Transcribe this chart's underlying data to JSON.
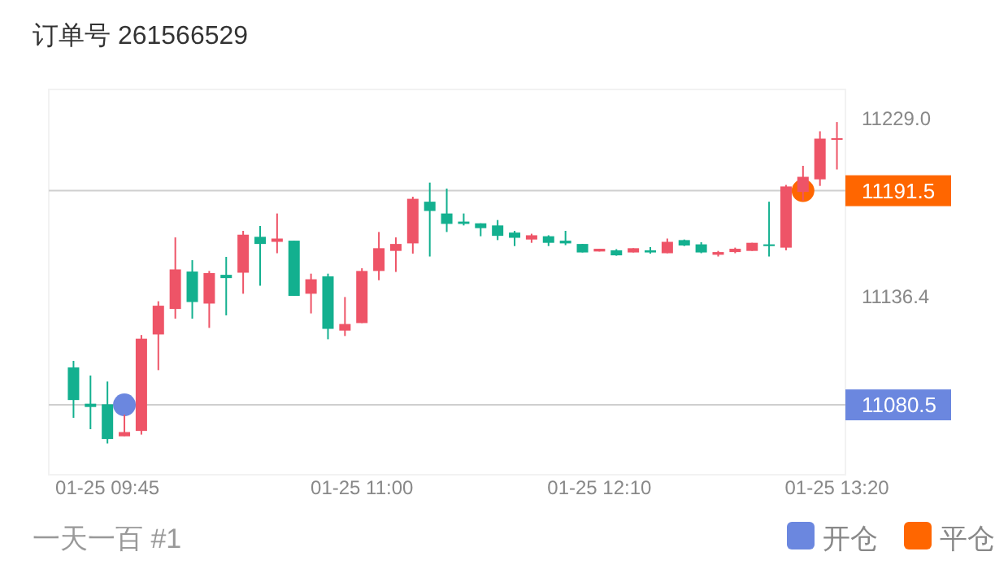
{
  "chart_data": {
    "type": "candlestick",
    "title": "订单号 261566529",
    "categories": [
      null,
      null,
      "01-25 09:45",
      null,
      null,
      null,
      null,
      null,
      null,
      null,
      null,
      null,
      null,
      null,
      null,
      null,
      null,
      "01-25 11:00",
      null,
      null,
      null,
      null,
      null,
      null,
      null,
      null,
      null,
      null,
      null,
      null,
      null,
      "01-25 12:10",
      null,
      null,
      null,
      null,
      null,
      null,
      null,
      null,
      null,
      null,
      null,
      null,
      null,
      "01-25 13:20"
    ],
    "ohlc": [
      [
        11099.9,
        11103.3,
        11073.8,
        11083.0
      ],
      [
        11081.1,
        11095.7,
        11067.9,
        11079.4
      ],
      [
        11080.8,
        11092.6,
        11060.5,
        11062.8
      ],
      [
        11064.2,
        11075.4,
        11064.2,
        11066.4
      ],
      [
        11067.0,
        11116.7,
        11065.1,
        11114.8
      ],
      [
        11117.0,
        11134.2,
        11098.5,
        11131.9
      ],
      [
        11130.2,
        11167.3,
        11125.2,
        11150.7
      ],
      [
        11149.6,
        11155.5,
        11125.2,
        11133.8
      ],
      [
        11133.0,
        11149.9,
        11120.4,
        11148.8
      ],
      [
        11147.9,
        11157.2,
        11126.9,
        11146.2
      ],
      [
        11149.0,
        11170.7,
        11138.1,
        11168.7
      ],
      [
        11167.6,
        11173.2,
        11142.3,
        11163.9
      ],
      [
        11165.0,
        11179.7,
        11159.1,
        11166.7
      ],
      [
        11165.6,
        11165.6,
        11137.0,
        11137.0
      ],
      [
        11138.1,
        11148.5,
        11127.9,
        11145.6
      ],
      [
        11147.1,
        11148.5,
        11114.5,
        11119.9
      ],
      [
        11119.0,
        11136.4,
        11116.2,
        11122.4
      ],
      [
        11122.9,
        11151.3,
        11122.9,
        11149.9
      ],
      [
        11149.9,
        11170.1,
        11145.1,
        11161.7
      ],
      [
        11160.3,
        11167.3,
        11149.4,
        11163.9
      ],
      [
        11164.2,
        11188.4,
        11158.9,
        11187.3
      ],
      [
        11185.8,
        11195.7,
        11157.4,
        11181.0
      ],
      [
        11179.7,
        11192.6,
        11170.1,
        11174.3
      ],
      [
        11175.5,
        11179.7,
        11173.5,
        11174.3
      ],
      [
        11174.6,
        11174.6,
        11167.9,
        11172.1
      ],
      [
        11173.5,
        11176.3,
        11165.9,
        11168.1
      ],
      [
        11169.8,
        11170.7,
        11162.8,
        11167.1
      ],
      [
        11166.2,
        11169.2,
        11164.5,
        11168.4
      ],
      [
        11167.9,
        11168.4,
        11162.8,
        11164.5
      ],
      [
        11165.6,
        11170.7,
        11163.3,
        11164.2
      ],
      [
        11163.9,
        11163.9,
        11159.5,
        11159.5
      ],
      [
        11160.0,
        11161.4,
        11160.0,
        11161.4
      ],
      [
        11160.6,
        11161.2,
        11157.8,
        11158.0
      ],
      [
        11159.5,
        11161.7,
        11159.5,
        11161.7
      ],
      [
        11160.6,
        11162.3,
        11158.9,
        11159.5
      ],
      [
        11159.1,
        11166.7,
        11159.1,
        11165.0
      ],
      [
        11165.9,
        11166.2,
        11162.8,
        11163.1
      ],
      [
        11163.7,
        11164.8,
        11159.1,
        11159.5
      ],
      [
        11158.3,
        11160.3,
        11157.4,
        11159.7
      ],
      [
        11159.7,
        11162.0,
        11159.1,
        11161.4
      ],
      [
        11160.3,
        11164.5,
        11160.3,
        11164.5
      ],
      [
        11163.7,
        11185.8,
        11157.4,
        11162.8
      ],
      [
        11162.0,
        11194.5,
        11160.6,
        11193.7
      ],
      [
        11190.9,
        11204.4,
        11186.4,
        11198.7
      ],
      [
        11197.4,
        11222.3,
        11194.0,
        11218.5
      ],
      [
        11217.9,
        11227.1,
        11202.5,
        11218.7
      ]
    ],
    "colors": [
      "#13b08f",
      "#13b08f",
      "#13b08f",
      "#ee5467",
      "#ee5467",
      "#ee5467",
      "#ee5467",
      "#13b08f",
      "#ee5467",
      "#13b08f",
      "#ee5467",
      "#13b08f",
      "#ee5467",
      "#13b08f",
      "#ee5467",
      "#13b08f",
      "#ee5467",
      "#ee5467",
      "#ee5467",
      "#ee5467",
      "#ee5467",
      "#13b08f",
      "#13b08f",
      "#13b08f",
      "#13b08f",
      "#13b08f",
      "#13b08f",
      "#ee5467",
      "#13b08f",
      "#13b08f",
      "#13b08f",
      "#ee5467",
      "#13b08f",
      "#ee5467",
      "#13b08f",
      "#ee5467",
      "#13b08f",
      "#13b08f",
      "#ee5467",
      "#ee5467",
      "#ee5467",
      "#13b08f",
      "#ee5467",
      "#ee5467",
      "#ee5467",
      "#ee5467"
    ],
    "series": [
      {
        "type": "scatter",
        "name": "开仓",
        "color": "#6b87df",
        "values": [
          null,
          null,
          null,
          11080.5,
          null,
          null,
          null,
          null,
          null,
          null,
          null,
          null,
          null,
          null,
          null,
          null,
          null,
          null,
          null,
          null,
          null,
          null,
          null,
          null,
          null,
          null,
          null,
          null,
          null,
          null,
          null,
          null,
          null,
          null,
          null,
          null,
          null,
          null,
          null,
          null,
          null,
          null,
          null,
          null,
          null,
          null
        ]
      },
      {
        "type": "scatter",
        "name": "平仓",
        "color": "#ff6600",
        "values": [
          null,
          null,
          null,
          null,
          null,
          null,
          null,
          null,
          null,
          null,
          null,
          null,
          null,
          null,
          null,
          null,
          null,
          null,
          null,
          null,
          null,
          null,
          null,
          null,
          null,
          null,
          null,
          null,
          null,
          null,
          null,
          null,
          null,
          null,
          null,
          null,
          null,
          null,
          null,
          null,
          null,
          null,
          null,
          11191.5,
          null,
          null
        ]
      }
    ],
    "marker": "circle",
    "ylim": [
      11044.3,
      11244.0
    ],
    "yticks": [
      {
        "value": 11229.0,
        "label": "11229.0"
      },
      {
        "value": 11136.4,
        "label": "11136.4"
      }
    ],
    "ref_lines": [
      {
        "axis": "y",
        "value": 11191.5,
        "label": "11191.5"
      },
      {
        "axis": "y",
        "value": 11080.5,
        "label": "11080.5"
      }
    ],
    "legend": "bottom right",
    "annotations": [
      "一天一百 #1"
    ]
  }
}
